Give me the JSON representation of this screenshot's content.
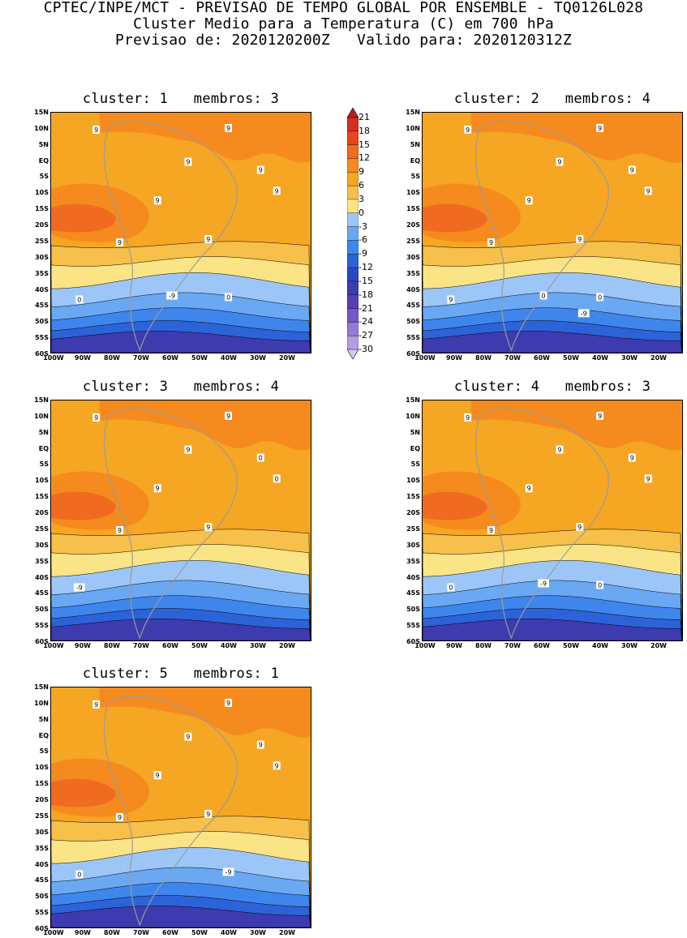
{
  "header": {
    "line1": "CPTEC/INPE/MCT - PREVISAO DE TEMPO GLOBAL POR ENSEMBLE - TQ0126L028",
    "line2": "Cluster Medio para a Temperatura (C) em 700 hPa",
    "line3": "Previsao de: 2020120200Z   Valido para: 2020120312Z"
  },
  "lat_labels": [
    "15N",
    "10N",
    "5N",
    "EQ",
    "5S",
    "10S",
    "15S",
    "20S",
    "25S",
    "30S",
    "35S",
    "40S",
    "45S",
    "50S",
    "55S",
    "60S"
  ],
  "lon_labels": [
    "100W",
    "90W",
    "80W",
    "70W",
    "60W",
    "50W",
    "40W",
    "30W",
    "20W"
  ],
  "colorbar": {
    "labels": [
      "21",
      "18",
      "15",
      "12",
      "9",
      "6",
      "3",
      "0",
      "-3",
      "-6",
      "-9",
      "-12",
      "-15",
      "-18",
      "-21",
      "-24",
      "-27",
      "-30"
    ],
    "colors": [
      "#b52222",
      "#d62f1e",
      "#e8451c",
      "#f06a1f",
      "#f58a1f",
      "#f5a623",
      "#f7c04b",
      "#fbe485",
      "#9cc6f7",
      "#6aa8f3",
      "#3f86ec",
      "#2d63d8",
      "#2a48c2",
      "#3e3bb0",
      "#5640b6",
      "#7557c8",
      "#9479d8",
      "#b49ce6",
      "#d6c6f2"
    ]
  },
  "panels": [
    {
      "title": "cluster: 1   membros: 3",
      "contour_labels": [
        "9",
        "9",
        "9",
        "9",
        "9",
        "9",
        "9",
        "9",
        "0",
        "0",
        "-9"
      ]
    },
    {
      "title": "cluster: 2   membros: 4",
      "contour_labels": [
        "9",
        "9",
        "9",
        "9",
        "9",
        "9",
        "9",
        "9",
        "9",
        "0",
        "0",
        "-9"
      ]
    },
    {
      "title": "cluster: 3   membros: 4",
      "contour_labels": [
        "9",
        "9",
        "9",
        "9",
        "9",
        "9",
        "0",
        "0",
        "-9"
      ]
    },
    {
      "title": "cluster: 4   membros: 3",
      "contour_labels": [
        "9",
        "9",
        "9",
        "9",
        "9",
        "9",
        "9",
        "9",
        "0",
        "0",
        "-9"
      ]
    },
    {
      "title": "cluster: 5   membros: 1",
      "contour_labels": [
        "9",
        "9",
        "9",
        "9",
        "9",
        "9",
        "9",
        "9",
        "0",
        "-9"
      ]
    }
  ]
}
